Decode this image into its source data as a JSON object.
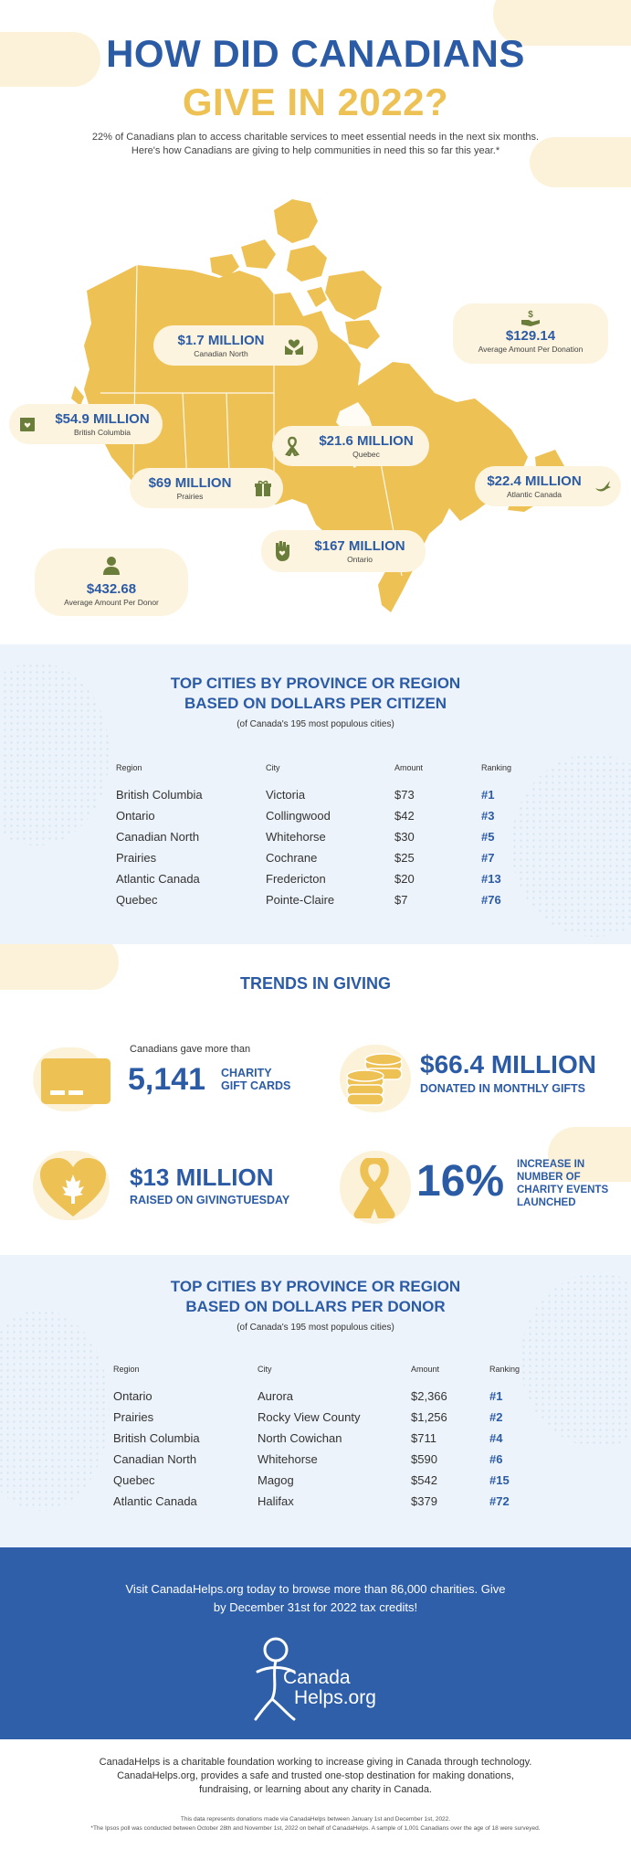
{
  "hero": {
    "title_line1": "HOW DID CANADIANS",
    "title_line2": "GIVE IN 2022?",
    "intro_line1": "22% of Canadians plan to access charitable services to meet essential needs in the next six months.",
    "intro_line2": "Here's how Canadians are giving to help communities in need this so far this year.*"
  },
  "map_stats": [
    {
      "amount": "$1.7 MILLION",
      "label": "Canadian North",
      "icon": "hands-heart-icon"
    },
    {
      "amount": "$129.14",
      "label": "Average Amount Per Donation",
      "icon": "hand-dollar-icon"
    },
    {
      "amount": "$54.9 MILLION",
      "label": "British Columbia",
      "icon": "box-heart-icon"
    },
    {
      "amount": "$21.6 MILLION",
      "label": "Quebec",
      "icon": "ribbon-icon"
    },
    {
      "amount": "$69 MILLION",
      "label": "Prairies",
      "icon": "gift-icon"
    },
    {
      "amount": "$22.4 MILLION",
      "label": "Atlantic Canada",
      "icon": "bird-icon"
    },
    {
      "amount": "$167 MILLION",
      "label": "Ontario",
      "icon": "raised-hand-heart-icon"
    },
    {
      "amount": "$432.68",
      "label": "Average Amount Per Donor",
      "icon": "person-icon"
    }
  ],
  "colors": {
    "blue": "#2c5ba6",
    "gold": "#eec154",
    "green": "#6b7d3a",
    "light_blue": "#edf3fa",
    "cta_blue": "#2f5fa8"
  },
  "table_citizen": {
    "title_line1": "TOP CITIES BY PROVINCE OR REGION",
    "title_line2": "BASED ON DOLLARS PER CITIZEN",
    "subtitle": "(of Canada's 195 most populous cities)",
    "headers": [
      "Region",
      "City",
      "Amount",
      "Ranking"
    ],
    "rows": [
      [
        "British Columbia",
        "Victoria",
        "$73",
        "#1"
      ],
      [
        "Ontario",
        "Collingwood",
        "$42",
        "#3"
      ],
      [
        "Canadian North",
        "Whitehorse",
        "$30",
        "#5"
      ],
      [
        "Prairies",
        "Cochrane",
        "$25",
        "#7"
      ],
      [
        "Atlantic Canada",
        "Fredericton",
        "$20",
        "#13"
      ],
      [
        "Quebec",
        "Pointe-Claire",
        "$7",
        "#76"
      ]
    ]
  },
  "trends": {
    "title": "TRENDS IN GIVING",
    "gift_cards_pre": "Canadians gave more than",
    "gift_cards_num": "5,141",
    "gift_cards_cap1": "CHARITY",
    "gift_cards_cap2": "GIFT CARDS",
    "monthly_amt": "$66.4 MILLION",
    "monthly_cap": "DONATED IN MONTHLY GIFTS",
    "givingtuesday_amt": "$13 MILLION",
    "givingtuesday_cap": "RAISED ON GIVINGTUESDAY",
    "events_pct": "16%",
    "events_cap1": "INCREASE IN",
    "events_cap2": "NUMBER OF",
    "events_cap3": "CHARITY EVENTS",
    "events_cap4": "LAUNCHED"
  },
  "table_donor": {
    "title_line1": "TOP CITIES BY PROVINCE OR REGION",
    "title_line2": "BASED ON DOLLARS PER DONOR",
    "subtitle": "(of Canada's 195 most populous cities)",
    "headers": [
      "Region",
      "City",
      "Amount",
      "Ranking"
    ],
    "rows": [
      [
        "Ontario",
        "Aurora",
        "$2,366",
        "#1"
      ],
      [
        "Prairies",
        "Rocky View County",
        "$1,256",
        "#2"
      ],
      [
        "British Columbia",
        "North Cowichan",
        "$711",
        "#4"
      ],
      [
        "Canadian North",
        "Whitehorse",
        "$590",
        "#6"
      ],
      [
        "Quebec",
        "Magog",
        "$542",
        "#15"
      ],
      [
        "Atlantic Canada",
        "Halifax",
        "$379",
        "#72"
      ]
    ]
  },
  "cta": {
    "line1": "Visit CanadaHelps.org today to browse more than 86,000 charities. Give",
    "line2": "by December 31st for 2022 tax credits!",
    "logo_line1": "Canada",
    "logo_line2": "Helps.org"
  },
  "footer": {
    "line1": "CanadaHelps is a charitable foundation working to increase giving in Canada through technology.",
    "line2": "CanadaHelps.org, provides a safe and trusted one-stop destination for making donations,",
    "line3": "fundraising, or learning about any charity in Canada.",
    "note1": "This data represents donations made via CanadaHelps between January 1st and December 1st, 2022.",
    "note2": "*The Ipsos poll was conducted between October 28th and November 1st, 2022 on behalf of CanadaHelps. A sample of 1,001 Canadians over the age of 18 were surveyed."
  }
}
